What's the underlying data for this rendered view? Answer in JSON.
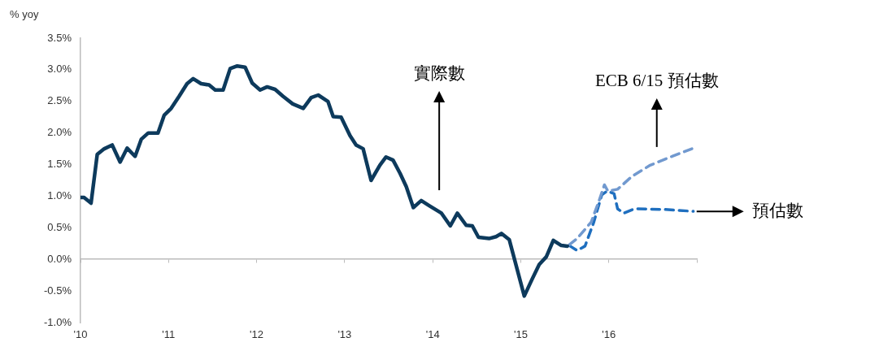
{
  "chart_data": {
    "type": "line",
    "ylabel": "% yoy",
    "marker": "none",
    "xlim": [
      2010,
      2017
    ],
    "xticks": [
      {
        "value": 2010,
        "label": "'10"
      },
      {
        "value": 2011,
        "label": "'11"
      },
      {
        "value": 2012,
        "label": "'12"
      },
      {
        "value": 2013,
        "label": "'13"
      },
      {
        "value": 2014,
        "label": "'14"
      },
      {
        "value": 2015,
        "label": "'15"
      },
      {
        "value": 2016,
        "label": "'16"
      },
      {
        "value": 2017,
        "label": null
      }
    ],
    "ylim": [
      -1,
      3.5
    ],
    "yticks": [
      {
        "value": -1,
        "label": "-1.0%"
      },
      {
        "value": -0.5,
        "label": "-0.5%"
      },
      {
        "value": 0,
        "label": "0.0%"
      },
      {
        "value": 0.5,
        "label": "0.5%"
      },
      {
        "value": 1,
        "label": "1.0%"
      },
      {
        "value": 1.5,
        "label": "1.5%"
      },
      {
        "value": 2,
        "label": "2.0%"
      },
      {
        "value": 2.5,
        "label": "2.5%"
      },
      {
        "value": 3,
        "label": "3.0%"
      },
      {
        "value": 3.5,
        "label": "3.5%"
      }
    ],
    "series": [
      {
        "color": "#0d3a5c",
        "line_style": "solid",
        "x": [
          2010,
          2010.04,
          2010.12,
          2010.19,
          2010.27,
          2010.36,
          2010.45,
          2010.53,
          2010.62,
          2010.69,
          2010.77,
          2010.88,
          2010.95,
          2011.03,
          2011.12,
          2011.21,
          2011.28,
          2011.37,
          2011.46,
          2011.53,
          2011.62,
          2011.7,
          2011.78,
          2011.87,
          2011.95,
          2012.04,
          2012.12,
          2012.21,
          2012.3,
          2012.41,
          2012.53,
          2012.62,
          2012.7,
          2012.81,
          2012.87,
          2012.96,
          2013.06,
          2013.13,
          2013.21,
          2013.3,
          2013.4,
          2013.47,
          2013.55,
          2013.63,
          2013.7,
          2013.78,
          2013.87,
          2013.96,
          2014.1,
          2014.2,
          2014.28,
          2014.38,
          2014.45,
          2014.52,
          2014.64,
          2014.72,
          2014.78,
          2014.87,
          2015.04,
          2015.13,
          2015.21,
          2015.29,
          2015.37,
          2015.46,
          2015.53
        ],
        "values": [
          0.98,
          0.98,
          0.89,
          1.66,
          1.75,
          1.81,
          1.54,
          1.76,
          1.63,
          1.9,
          2.0,
          2.0,
          2.28,
          2.39,
          2.58,
          2.78,
          2.86,
          2.78,
          2.76,
          2.68,
          2.68,
          3.02,
          3.06,
          3.04,
          2.79,
          2.68,
          2.73,
          2.69,
          2.58,
          2.46,
          2.39,
          2.56,
          2.6,
          2.5,
          2.26,
          2.25,
          1.96,
          1.81,
          1.75,
          1.25,
          1.49,
          1.62,
          1.57,
          1.36,
          1.15,
          0.82,
          0.93,
          0.85,
          0.73,
          0.53,
          0.73,
          0.54,
          0.53,
          0.35,
          0.33,
          0.36,
          0.41,
          0.31,
          -0.58,
          -0.31,
          -0.08,
          0.04,
          0.3,
          0.22,
          0.21
        ]
      },
      {
        "color": "#7199cf",
        "line_style": "dashed",
        "x": [
          2015.55,
          2015.64,
          2015.8,
          2015.89,
          2015.95,
          2015.99,
          2016.1,
          2016.26,
          2016.47,
          2016.72,
          2016.96
        ],
        "values": [
          0.23,
          0.33,
          0.59,
          0.93,
          1.18,
          1.08,
          1.11,
          1.31,
          1.49,
          1.63,
          1.76
        ]
      },
      {
        "color": "#1f6fbf",
        "line_style": "dashed",
        "x": [
          2015.55,
          2015.64,
          2015.73,
          2015.83,
          2015.92,
          2015.98,
          2016.06,
          2016.1,
          2016.17,
          2016.29,
          2016.63,
          2016.96
        ],
        "values": [
          0.22,
          0.14,
          0.21,
          0.59,
          1.02,
          1.08,
          1.04,
          0.8,
          0.73,
          0.8,
          0.79,
          0.76
        ]
      }
    ],
    "annotations": [
      "實際數",
      "ECB 6/15 預估數",
      "預估數"
    ]
  }
}
